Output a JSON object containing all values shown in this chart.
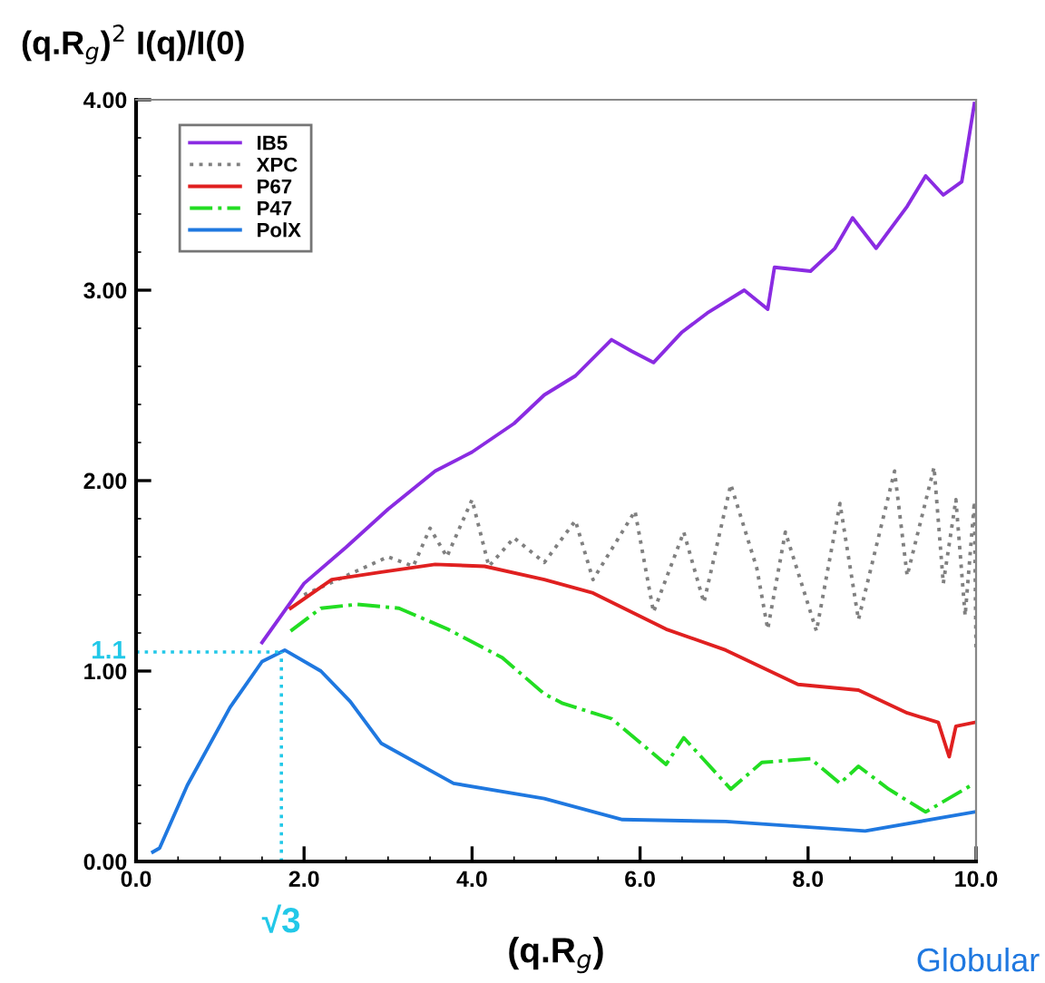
{
  "chart_data": {
    "type": "line",
    "xlabel": "(q.R$_{g}$)",
    "ylabel": "(q.R$_{g}$)$^{2}$ I(q)/I(0)",
    "xlim": [
      0,
      10
    ],
    "ylim": [
      0,
      4
    ],
    "xticks": [
      {
        "value": 0,
        "label": "0.0"
      },
      {
        "value": 2,
        "label": "2.0"
      },
      {
        "value": 4,
        "label": "4.0"
      },
      {
        "value": 6,
        "label": "6.0"
      },
      {
        "value": 8,
        "label": "8.0"
      },
      {
        "value": 10,
        "label": "10.0"
      }
    ],
    "yticks": [
      {
        "value": 0,
        "label": "0.00"
      },
      {
        "value": 1,
        "label": "1.00"
      },
      {
        "value": 2,
        "label": "2.00"
      },
      {
        "value": 3,
        "label": "3.00"
      },
      {
        "value": 4,
        "label": "4.00"
      }
    ],
    "grid": false,
    "legend": "top left",
    "ref_lines": [
      {
        "axis": "y",
        "value": 1.1,
        "label": "1.1",
        "color": "#22c8e8",
        "line_style": "dotted"
      },
      {
        "axis": "x",
        "value": 1.73,
        "label": "√3",
        "color": "#22c8e8",
        "line_style": "dotted"
      }
    ],
    "annotations": [
      "Globular"
    ],
    "series": [
      {
        "name": "IB5",
        "color": "#8a2be2",
        "line_style": "solid",
        "x": [
          1.5,
          2.0,
          2.5,
          3.0,
          3.56,
          4.0,
          4.5,
          4.86,
          5.23,
          5.66,
          5.9,
          6.16,
          6.5,
          6.8,
          7.24,
          7.52,
          7.6,
          8.03,
          8.32,
          8.53,
          8.81,
          9.18,
          9.4,
          9.61,
          9.83,
          9.9,
          9.98
        ],
        "values": [
          1.15,
          1.46,
          1.65,
          1.85,
          2.05,
          2.15,
          2.3,
          2.45,
          2.55,
          2.74,
          2.68,
          2.62,
          2.78,
          2.88,
          3.0,
          2.9,
          3.12,
          3.1,
          3.22,
          3.38,
          3.22,
          3.44,
          3.6,
          3.5,
          3.57,
          3.76,
          3.98
        ]
      },
      {
        "name": "XPC",
        "color": "#808080",
        "line_style": "dotted",
        "x": [
          2.0,
          2.5,
          3.0,
          3.3,
          3.5,
          3.7,
          4.0,
          4.2,
          4.5,
          4.86,
          5.23,
          5.44,
          5.94,
          6.16,
          6.52,
          6.76,
          7.08,
          7.39,
          7.52,
          7.73,
          8.1,
          8.38,
          8.6,
          9.03,
          9.18,
          9.5,
          9.61,
          9.76,
          9.87,
          9.98,
          10.0
        ],
        "values": [
          1.4,
          1.5,
          1.6,
          1.55,
          1.75,
          1.6,
          1.9,
          1.55,
          1.7,
          1.57,
          1.79,
          1.48,
          1.84,
          1.31,
          1.73,
          1.36,
          1.98,
          1.54,
          1.22,
          1.73,
          1.21,
          1.88,
          1.27,
          2.05,
          1.5,
          2.07,
          1.46,
          1.9,
          1.29,
          1.89,
          1.1
        ]
      },
      {
        "name": "P67",
        "color": "#e02020",
        "line_style": "solid",
        "x": [
          1.84,
          2.33,
          2.92,
          3.56,
          4.15,
          4.86,
          5.44,
          6.31,
          7.02,
          7.88,
          8.6,
          9.18,
          9.55,
          9.68,
          9.76,
          9.98
        ],
        "values": [
          1.33,
          1.48,
          1.52,
          1.56,
          1.55,
          1.48,
          1.41,
          1.22,
          1.11,
          0.93,
          0.9,
          0.78,
          0.73,
          0.55,
          0.71,
          0.73
        ]
      },
      {
        "name": "P47",
        "color": "#22dd22",
        "line_style": "dashdot",
        "x": [
          1.84,
          2.2,
          2.63,
          3.13,
          3.71,
          4.36,
          4.86,
          5.08,
          5.66,
          6.31,
          6.52,
          7.08,
          7.45,
          8.03,
          8.38,
          8.6,
          8.96,
          9.4,
          9.98
        ],
        "values": [
          1.21,
          1.33,
          1.35,
          1.33,
          1.22,
          1.07,
          0.88,
          0.83,
          0.75,
          0.51,
          0.65,
          0.38,
          0.52,
          0.54,
          0.41,
          0.5,
          0.38,
          0.26,
          0.41
        ]
      },
      {
        "name": "PolX",
        "color": "#1f78e0",
        "line_style": "solid",
        "x": [
          0.2,
          0.28,
          0.61,
          1.12,
          1.5,
          1.77,
          2.2,
          2.55,
          2.92,
          3.78,
          4.86,
          5.79,
          7.02,
          8.68,
          9.98
        ],
        "values": [
          0.05,
          0.07,
          0.4,
          0.81,
          1.05,
          1.11,
          1.0,
          0.84,
          0.62,
          0.41,
          0.33,
          0.22,
          0.21,
          0.16,
          0.26
        ]
      }
    ]
  }
}
